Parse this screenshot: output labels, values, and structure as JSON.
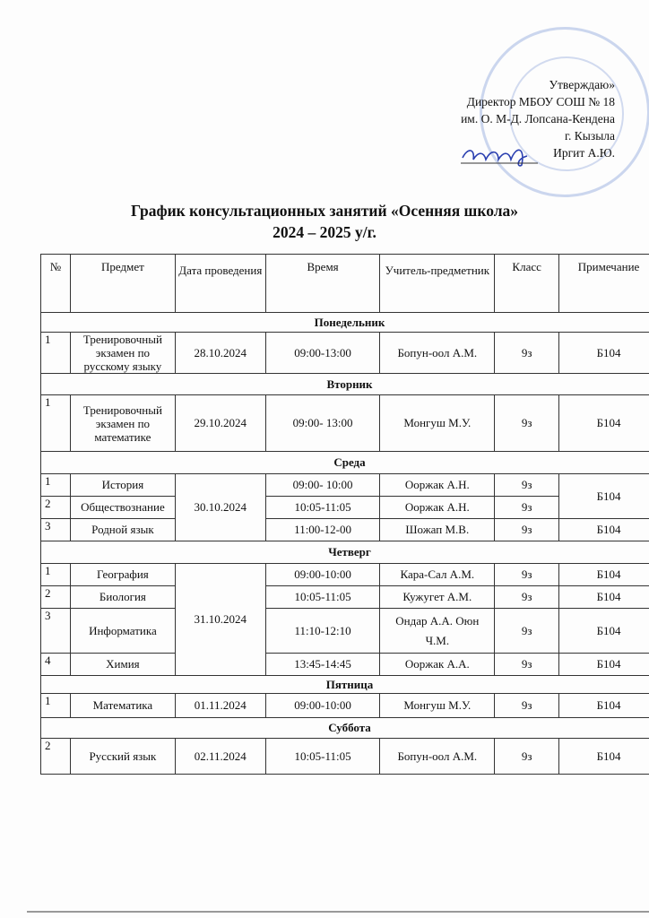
{
  "approval": {
    "line1": "Утверждаю»",
    "line2": "Директор МБОУ СОШ № 18",
    "line3": "им. О. М-Д. Лопсана-Кендена",
    "line4": "г. Кызыла",
    "line5": "Иргит А.Ю."
  },
  "title": {
    "line1": "График консультационных занятий «Осенняя школа»",
    "line2": "2024 – 2025 у/г."
  },
  "table": {
    "headers": [
      "№",
      "Предмет",
      "Дата проведения",
      "Время",
      "Учитель-предметник",
      "Класс",
      "Примечание"
    ],
    "days": [
      {
        "name": "Понедельник",
        "date": "28.10.2024",
        "rows": [
          {
            "n": "1",
            "subject": "Тренировочный экзамен по русскому языку",
            "time": "09:00-13:00",
            "teacher": "Бопун-оол А.М.",
            "class": "9з",
            "note": "Б104"
          }
        ]
      },
      {
        "name": "Вторник",
        "date": "29.10.2024",
        "rows": [
          {
            "n": "1",
            "subject": "Тренировочный экзамен по математике",
            "time": "09:00- 13:00",
            "teacher": "Монгуш М.У.",
            "class": "9з",
            "note": "Б104"
          }
        ]
      },
      {
        "name": "Среда",
        "date": "30.10.2024",
        "rows": [
          {
            "n": "1",
            "subject": "История",
            "time": "09:00- 10:00",
            "teacher": "Ооржак А.Н.",
            "class": "9з",
            "note": "Б104"
          },
          {
            "n": "2",
            "subject": "Обществознание",
            "time": "10:05-11:05",
            "teacher": "Ооржак А.Н.",
            "class": "9з",
            "note": null
          },
          {
            "n": "3",
            "subject": "Родной язык",
            "time": "11:00-12-00",
            "teacher": "Шожап М.В.",
            "class": "9з",
            "note": "Б104"
          }
        ]
      },
      {
        "name": "Четверг",
        "date": "31.10.2024",
        "rows": [
          {
            "n": "1",
            "subject": "География",
            "time": "09:00-10:00",
            "teacher": "Кара-Сал А.М.",
            "class": "9з",
            "note": "Б104"
          },
          {
            "n": "2",
            "subject": "Биология",
            "time": "10:05-11:05",
            "teacher": "Кужугет А.М.",
            "class": "9з",
            "note": "Б104"
          },
          {
            "n": "3",
            "subject": "Информатика",
            "time": "11:10-12:10",
            "teacher": "Ондар А.А. Оюн Ч.М.",
            "class": "9з",
            "note": "Б104"
          },
          {
            "n": "4",
            "subject": "Химия",
            "time": "13:45-14:45",
            "teacher": "Ооржак А.А.",
            "class": "9з",
            "note": "Б104"
          }
        ]
      },
      {
        "name": "Пятница",
        "date": "01.11.2024",
        "rows": [
          {
            "n": "1",
            "subject": "Математика",
            "time": "09:00-10:00",
            "teacher": "Монгуш М.У.",
            "class": "9з",
            "note": "Б104"
          }
        ]
      },
      {
        "name": "Суббота",
        "date": "02.11.2024",
        "rows": [
          {
            "n": "2",
            "subject": "Русский язык",
            "time": "10:05-11:05",
            "teacher": "Бопун-оол А.М.",
            "class": "9з",
            "note": "Б104"
          }
        ]
      }
    ]
  }
}
